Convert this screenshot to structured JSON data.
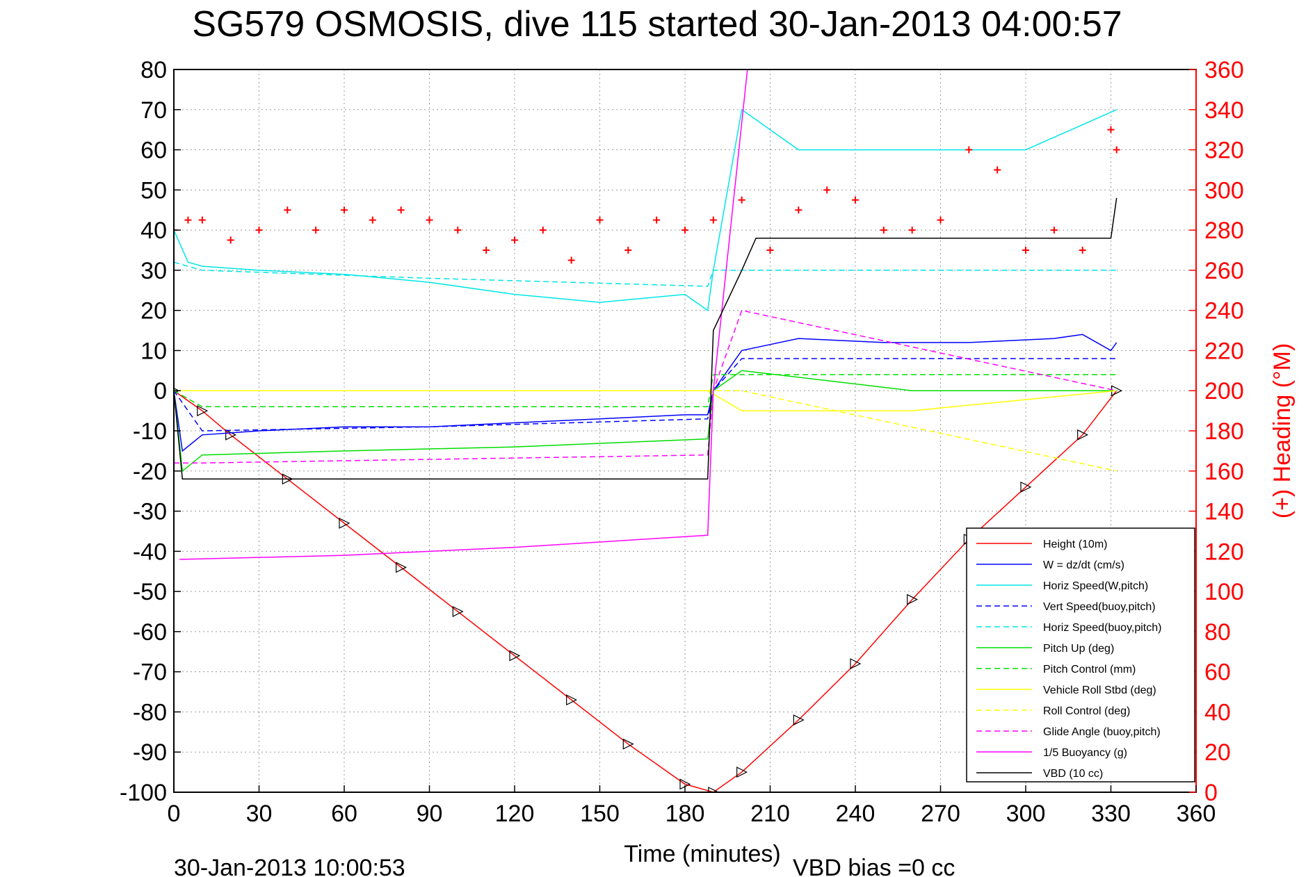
{
  "colors": {
    "height": "#ff0000",
    "w": "#0000ff",
    "horiz_speed": "#00e5e5",
    "vert_speed_buoy": "#0000ff",
    "horiz_speed_buoy": "#00e5e5",
    "pitch_up": "#00dd00",
    "pitch_control": "#00dd00",
    "roll": "#ffff00",
    "roll_control": "#ffff00",
    "glide_angle": "#ff00ff",
    "buoyancy": "#ff00ff",
    "vbd": "#000000",
    "heading": "#ff0000",
    "right_axis": "#ff0000"
  },
  "chart_data": {
    "type": "line",
    "title": "SG579 OSMOSIS, dive 115 started 30-Jan-2013 04:00:57",
    "xlabel": "Time (minutes)",
    "ylabel": "",
    "y2label": "(+) Heading (°M)",
    "xlim": [
      0,
      360
    ],
    "ylim": [
      -100,
      80
    ],
    "y2lim": [
      0,
      360
    ],
    "xticks": [
      "0",
      "30",
      "60",
      "90",
      "120",
      "150",
      "180",
      "210",
      "240",
      "270",
      "300",
      "330",
      "360"
    ],
    "yticks": [
      "80",
      "70",
      "60",
      "50",
      "40",
      "30",
      "20",
      "10",
      "0",
      "-10",
      "-20",
      "-30",
      "-40",
      "-50",
      "-60",
      "-70",
      "-80",
      "-90",
      "-100"
    ],
    "y2ticks": [
      "360",
      "340",
      "320",
      "300",
      "280",
      "260",
      "240",
      "220",
      "200",
      "180",
      "160",
      "140",
      "120",
      "100",
      "80",
      "60",
      "40",
      "20",
      "0"
    ],
    "grid": true,
    "legend_position": "bottom-right",
    "footer_left": "30-Jan-2013 10:00:53",
    "footer_right": "VBD bias =0 cc",
    "series": [
      {
        "name": "Height (10m)",
        "style": "solid",
        "x": [
          0,
          10,
          20,
          40,
          60,
          80,
          100,
          120,
          140,
          160,
          180,
          190,
          200,
          220,
          240,
          260,
          280,
          300,
          320,
          332
        ],
        "y": [
          0,
          -5,
          -11,
          -22,
          -33,
          -44,
          -55,
          -66,
          -77,
          -88,
          -98,
          -100,
          -95,
          -82,
          -68,
          -52,
          -37,
          -24,
          -11,
          0
        ]
      },
      {
        "name": "W = dz/dt (cm/s)",
        "style": "solid",
        "x": [
          0,
          3,
          10,
          30,
          60,
          90,
          120,
          150,
          180,
          188,
          190,
          200,
          220,
          250,
          280,
          310,
          320,
          330,
          332
        ],
        "y": [
          0,
          -15,
          -11,
          -10,
          -9,
          -9,
          -8,
          -7,
          -6,
          -6,
          0,
          10,
          13,
          12,
          12,
          13,
          14,
          10,
          12
        ]
      },
      {
        "name": "Horiz Speed(W,pitch)",
        "style": "solid",
        "x": [
          0,
          5,
          10,
          30,
          60,
          90,
          120,
          150,
          180,
          188,
          190,
          200,
          220,
          260,
          300,
          332
        ],
        "y": [
          40,
          32,
          31,
          30,
          29,
          27,
          24,
          22,
          24,
          20,
          30,
          70,
          60,
          60,
          60,
          70
        ]
      },
      {
        "name": "Vert Speed(buoy,pitch)",
        "style": "dashed",
        "x": [
          0,
          10,
          90,
          188,
          190,
          200,
          332
        ],
        "y": [
          0,
          -10,
          -9,
          -7,
          0,
          8,
          8
        ]
      },
      {
        "name": "Horiz Speed(buoy,pitch)",
        "style": "dashed",
        "x": [
          0,
          10,
          90,
          188,
          190,
          332
        ],
        "y": [
          32,
          30,
          28,
          26,
          30,
          30
        ]
      },
      {
        "name": "Pitch Up (deg)",
        "style": "solid",
        "x": [
          0,
          3,
          10,
          60,
          120,
          188,
          190,
          200,
          260,
          332
        ],
        "y": [
          0,
          -20,
          -16,
          -15,
          -14,
          -12,
          0,
          5,
          0,
          0
        ]
      },
      {
        "name": "Pitch Control (mm)",
        "style": "dashed",
        "x": [
          0,
          10,
          188,
          190,
          332
        ],
        "y": [
          0,
          -4,
          -4,
          4,
          4
        ]
      },
      {
        "name": "Vehicle Roll Stbd (deg)",
        "style": "solid",
        "x": [
          0,
          10,
          60,
          120,
          180,
          188,
          200,
          260,
          332
        ],
        "y": [
          0,
          0,
          0,
          0,
          0,
          0,
          -5,
          -5,
          0
        ]
      },
      {
        "name": "Roll Control (deg)",
        "style": "dashed",
        "x": [
          0,
          10,
          188,
          200,
          332
        ],
        "y": [
          0,
          0,
          0,
          0,
          -20
        ]
      },
      {
        "name": "Glide Angle (buoy,pitch)",
        "style": "dashed",
        "x": [
          0,
          10,
          100,
          188,
          190,
          200,
          332
        ],
        "y": [
          -18,
          -18,
          -17,
          -16,
          0,
          20,
          0
        ]
      },
      {
        "name": "1/5 Buoyancy (g)",
        "style": "solid",
        "x": [
          2,
          3,
          60,
          120,
          188,
          190,
          202,
          205
        ],
        "y": [
          -42,
          -42,
          -41,
          -39,
          -36,
          0,
          80,
          80
        ]
      },
      {
        "name": "VBD (10 cc)",
        "style": "solid",
        "x": [
          0,
          3,
          10,
          100,
          188,
          190,
          200,
          205,
          220,
          330,
          332
        ],
        "y": [
          0,
          -22,
          -22,
          -22,
          -22,
          15,
          30,
          38,
          38,
          38,
          48
        ]
      },
      {
        "name": "(+) Heading (°M)",
        "style": "markers",
        "axis": "right",
        "x": [
          0,
          5,
          10,
          20,
          30,
          40,
          50,
          60,
          70,
          80,
          90,
          100,
          110,
          120,
          130,
          140,
          150,
          160,
          170,
          180,
          190,
          200,
          210,
          220,
          230,
          240,
          250,
          260,
          270,
          280,
          290,
          300,
          310,
          320,
          330,
          332
        ],
        "y": [
          280,
          285,
          285,
          275,
          280,
          290,
          280,
          290,
          285,
          290,
          285,
          280,
          270,
          275,
          280,
          265,
          285,
          270,
          285,
          280,
          285,
          295,
          270,
          290,
          300,
          295,
          280,
          280,
          285,
          320,
          310,
          270,
          280,
          270,
          330,
          320
        ]
      }
    ]
  }
}
